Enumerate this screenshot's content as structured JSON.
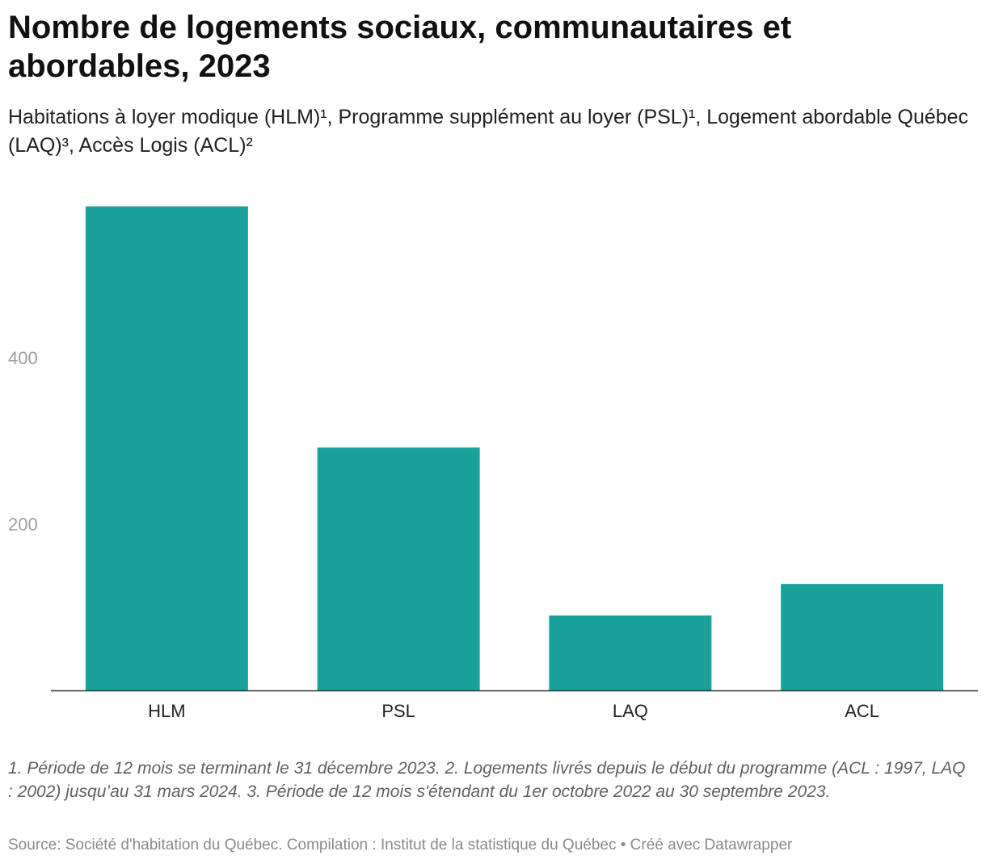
{
  "header": {
    "title": "Nombre de logements sociaux, communautaires et abordables, 2023",
    "subtitle": "Habitations à loyer modique (HLM)¹, Programme supplément au loyer (PSL)¹, Logement abordable Québec (LAQ)³, Accès Logis (ACL)²"
  },
  "footer": {
    "notes": "1. Période de 12 mois se terminant le 31 décembre 2023. 2. Logements livrés depuis le début du programme (ACL : 1997, LAQ : 2002) jusqu’au 31 mars 2024. 3. Période de 12 mois s'étendant du 1er octobre 2022 au 30 septembre 2023.",
    "source": "Source: Société d'habitation du Québec. Compilation : Institut de la statistique du Québec • Créé avec Datawrapper"
  },
  "chart_data": {
    "type": "bar",
    "categories": [
      "HLM",
      "PSL",
      "LAQ",
      "ACL"
    ],
    "values": [
      582,
      292,
      90,
      128
    ],
    "yticks": [
      200,
      400
    ],
    "ylim": [
      0,
      600
    ],
    "bar_color": "#1aa19c",
    "grid": false
  }
}
